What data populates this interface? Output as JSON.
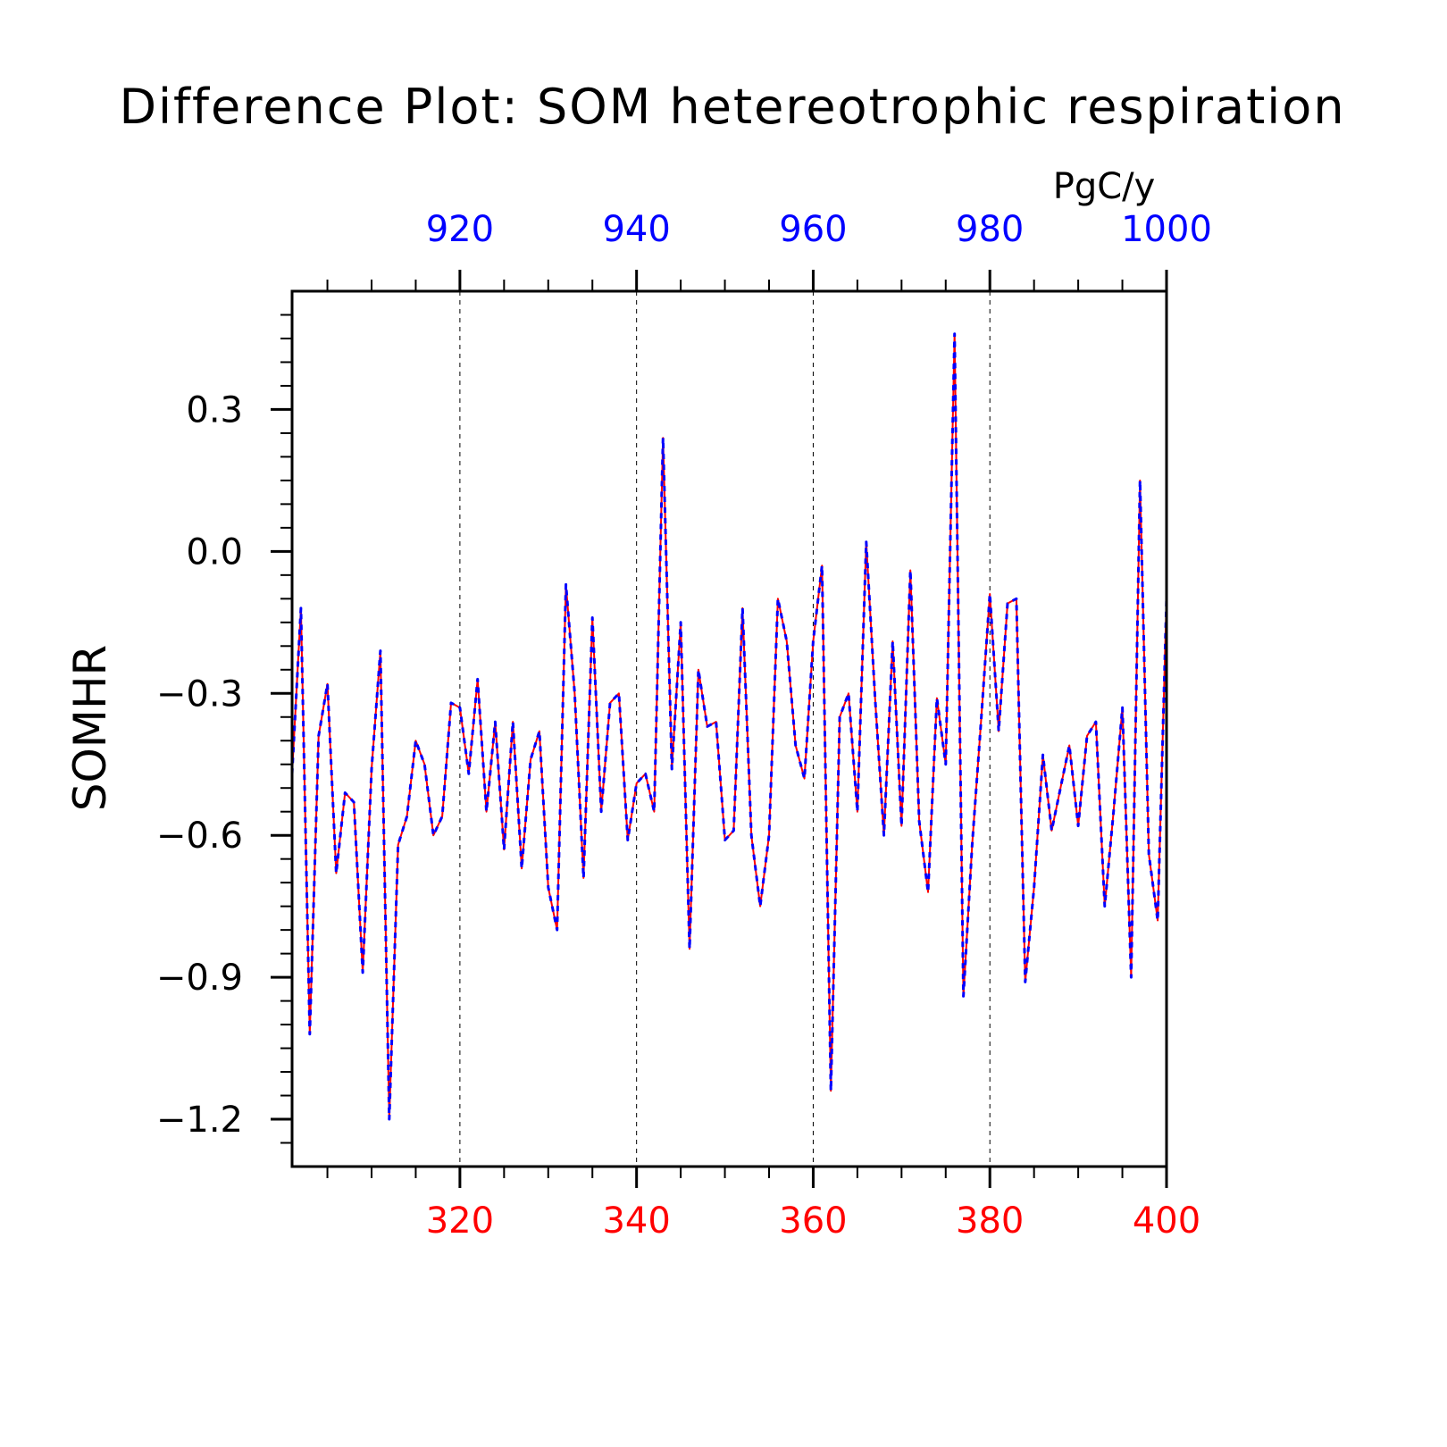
{
  "chart_data": {
    "type": "line",
    "title": "Difference Plot: SOM hetereotrophic respiration",
    "ylabel": "SOMHR",
    "units": "PgC/y",
    "ylim": [
      -1.3,
      0.55
    ],
    "bottom_axis": {
      "color": "#ff0000",
      "range": [
        301,
        400
      ],
      "ticks": [
        "320",
        "340",
        "360",
        "380",
        "400"
      ]
    },
    "top_axis": {
      "color": "#0000ff",
      "range": [
        901,
        1000
      ],
      "ticks": [
        "920",
        "940",
        "960",
        "980",
        "1000"
      ]
    },
    "y_ticks": [
      "0.3",
      "0.0",
      "−0.3",
      "−0.6",
      "−0.9",
      "−1.2"
    ],
    "grid": "vertical dashed at major x ticks",
    "series": [
      {
        "line": "solid",
        "color": "#ff0000",
        "values": [
          -0.47,
          -0.12,
          -1.02,
          -0.39,
          -0.28,
          -0.68,
          -0.51,
          -0.53,
          -0.89,
          -0.46,
          -0.21,
          -1.2,
          -0.62,
          -0.56,
          -0.4,
          -0.45,
          -0.6,
          -0.56,
          -0.32,
          -0.33,
          -0.47,
          -0.27,
          -0.55,
          -0.36,
          -0.63,
          -0.36,
          -0.67,
          -0.44,
          -0.38,
          -0.71,
          -0.8,
          -0.07,
          -0.3,
          -0.69,
          -0.14,
          -0.55,
          -0.32,
          -0.3,
          -0.61,
          -0.49,
          -0.47,
          -0.55,
          0.24,
          -0.46,
          -0.15,
          -0.84,
          -0.25,
          -0.37,
          -0.36,
          -0.61,
          -0.59,
          -0.12,
          -0.6,
          -0.75,
          -0.6,
          -0.1,
          -0.19,
          -0.41,
          -0.48,
          -0.19,
          -0.03,
          -1.14,
          -0.35,
          -0.3,
          -0.55,
          0.02,
          -0.31,
          -0.6,
          -0.19,
          -0.58,
          -0.04,
          -0.57,
          -0.72,
          -0.31,
          -0.45,
          0.46,
          -0.94,
          -0.62,
          -0.36,
          -0.09,
          -0.38,
          -0.11,
          -0.1,
          -0.91,
          -0.71,
          -0.43,
          -0.59,
          -0.5,
          -0.41,
          -0.58,
          -0.39,
          -0.36,
          -0.75,
          -0.55,
          -0.33,
          -0.9,
          0.15,
          -0.64,
          -0.78,
          -0.1
        ]
      },
      {
        "line": "dashed",
        "color": "#0000ff",
        "values": [
          -0.47,
          -0.12,
          -1.02,
          -0.39,
          -0.28,
          -0.68,
          -0.51,
          -0.53,
          -0.89,
          -0.46,
          -0.21,
          -1.2,
          -0.62,
          -0.56,
          -0.4,
          -0.45,
          -0.6,
          -0.56,
          -0.32,
          -0.33,
          -0.47,
          -0.27,
          -0.55,
          -0.36,
          -0.63,
          -0.36,
          -0.67,
          -0.44,
          -0.38,
          -0.71,
          -0.8,
          -0.07,
          -0.3,
          -0.69,
          -0.14,
          -0.55,
          -0.32,
          -0.3,
          -0.61,
          -0.49,
          -0.47,
          -0.55,
          0.24,
          -0.46,
          -0.15,
          -0.84,
          -0.25,
          -0.37,
          -0.36,
          -0.61,
          -0.59,
          -0.12,
          -0.6,
          -0.75,
          -0.6,
          -0.1,
          -0.19,
          -0.41,
          -0.48,
          -0.19,
          -0.03,
          -1.14,
          -0.35,
          -0.3,
          -0.55,
          0.02,
          -0.31,
          -0.6,
          -0.19,
          -0.58,
          -0.04,
          -0.57,
          -0.72,
          -0.31,
          -0.45,
          0.46,
          -0.94,
          -0.62,
          -0.36,
          -0.09,
          -0.38,
          -0.11,
          -0.1,
          -0.91,
          -0.71,
          -0.43,
          -0.59,
          -0.5,
          -0.41,
          -0.58,
          -0.39,
          -0.36,
          -0.75,
          -0.55,
          -0.33,
          -0.9,
          0.15,
          -0.64,
          -0.78,
          -0.1
        ]
      }
    ]
  }
}
